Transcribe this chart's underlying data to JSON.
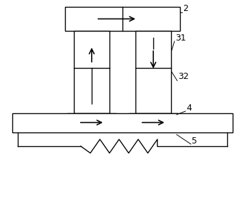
{
  "bg_color": "#ffffff",
  "line_color": "#000000",
  "label_color": "#000000",
  "label_2": "2",
  "label_31": "31",
  "label_32": "32",
  "label_4": "4",
  "label_5": "5",
  "figsize": [
    3.58,
    2.87
  ],
  "dpi": 100
}
